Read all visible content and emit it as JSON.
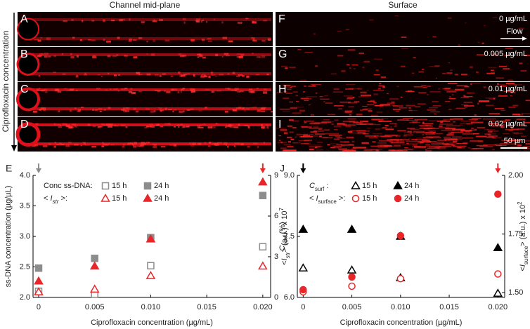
{
  "panels": {
    "left_title": "Channel mid-plane",
    "right_title": "Surface",
    "side_label": "Ciprofloxacin concentration",
    "flow": "Flow",
    "scale_bar": "50 µm",
    "left": [
      "A",
      "B",
      "C",
      "D"
    ],
    "right": [
      {
        "letter": "F",
        "conc": "0 µg/mL"
      },
      {
        "letter": "G",
        "conc": "0.005 µg/mL"
      },
      {
        "letter": "H",
        "conc": "0.01 µg/mL"
      },
      {
        "letter": "I",
        "conc": "0.02 µg/mL"
      }
    ]
  },
  "chart_data": [
    {
      "type": "scatter",
      "panel": "E",
      "xlabel": "Ciprofloxacin concentration (µg/mL)",
      "ylabel": "ss-DNA concentration (µg/µL)",
      "y2label": [
        {
          "text": "<"
        },
        {
          "text": "I",
          "italic": true
        },
        {
          "text": "str",
          "shift": "sub",
          "italic": true
        },
        {
          "text": "> (a.u.) x 10"
        },
        {
          "text": "7",
          "shift": "super"
        }
      ],
      "xlim": [
        -0.0005,
        0.0207
      ],
      "xticks": [
        0,
        0.005,
        {
          "value": 0.01,
          "label": "0.010"
        },
        0.015,
        {
          "value": 0.02,
          "label": "0.020"
        }
      ],
      "ylim": [
        2,
        4
      ],
      "yticks": [
        {
          "value": 2,
          "label": "2.0"
        },
        2.5,
        {
          "value": 3,
          "label": "3.0"
        },
        3.5,
        {
          "value": 4,
          "label": "4.0"
        }
      ],
      "y2lim": [
        0,
        9
      ],
      "y2ticks": [
        0,
        3,
        6,
        9
      ],
      "arrow_colors": [
        "#8c8c8c",
        "#e8262a"
      ],
      "legend_groups": [
        "Conc ss-DNA:",
        [
          {
            "text": "< "
          },
          {
            "text": "I",
            "italic": true
          },
          {
            "text": "str",
            "shift": "sub",
            "italic": true
          },
          {
            "text": " >:"
          }
        ]
      ],
      "x": [
        0,
        0.005,
        0.01,
        0.02
      ],
      "series": [
        {
          "name": "15 h",
          "color": "#8c8c8c",
          "marker": "square",
          "filled": false,
          "values": [
            2.1,
            2.05,
            2.52,
            2.83
          ]
        },
        {
          "name": "24 h",
          "color": "#8c8c8c",
          "marker": "square",
          "filled": true,
          "values": [
            2.48,
            2.64,
            2.98,
            3.67
          ]
        },
        {
          "name": "15 h",
          "color": "#e8262a",
          "marker": "triangle",
          "filled": false,
          "axis": "y2",
          "values": [
            0.4,
            0.6,
            1.6,
            2.3
          ]
        },
        {
          "name": "24 h",
          "color": "#e8262a",
          "marker": "triangle",
          "filled": true,
          "axis": "y2",
          "values": [
            1.2,
            2.3,
            4.3,
            8.5
          ]
        }
      ]
    },
    {
      "type": "scatter",
      "panel": "J",
      "xlabel": "Ciprofloxacin concentration (µg/mL)",
      "ylabel": [
        {
          "text": "C",
          "italic": true
        },
        {
          "text": "surf",
          "shift": "sub"
        },
        {
          "text": " (%)"
        }
      ],
      "y2label": [
        {
          "text": "<"
        },
        {
          "text": "I",
          "italic": true
        },
        {
          "text": "surface",
          "shift": "sub"
        },
        {
          "text": "> (a.u.) x 10"
        },
        {
          "text": "2",
          "shift": "super"
        }
      ],
      "xlim": [
        -0.0006,
        0.0207
      ],
      "xticks": [
        0,
        0.005,
        {
          "value": 0.01,
          "label": "0.010"
        },
        0.015,
        {
          "value": 0.02,
          "label": "0.020"
        }
      ],
      "ylim": [
        6,
        9
      ],
      "yticks": [
        {
          "value": 6,
          "label": "6.0"
        },
        7.5,
        {
          "value": 9,
          "label": "9.0"
        }
      ],
      "y2lim": [
        1.48,
        2
      ],
      "y2ticks": [
        {
          "value": 1.5,
          "label": "1.50"
        },
        1.75,
        {
          "value": 2,
          "label": "2.00"
        }
      ],
      "arrow_colors": [
        "#000000",
        "#e8262a"
      ],
      "legend_groups": [
        [
          {
            "text": "C",
            "italic": true
          },
          {
            "text": "surf",
            "shift": "sub"
          },
          {
            "text": " :"
          }
        ],
        [
          {
            "text": "< "
          },
          {
            "text": "I",
            "italic": true
          },
          {
            "text": "surface",
            "shift": "sub"
          },
          {
            "text": " >:"
          }
        ]
      ],
      "x": [
        0,
        0.005,
        0.01,
        0.02
      ],
      "series": [
        {
          "name": "15 h",
          "color": "#000000",
          "marker": "triangle",
          "filled": false,
          "values": [
            6.72,
            6.67,
            6.48,
            6.1
          ]
        },
        {
          "name": "24 h",
          "color": "#000000",
          "marker": "triangle",
          "filled": true,
          "values": [
            7.67,
            7.67,
            7.5,
            7.22
          ]
        },
        {
          "name": "15 h",
          "color": "#e8262a",
          "marker": "circle",
          "filled": false,
          "axis": "y2",
          "values": [
            1.504,
            1.528,
            1.56,
            1.58
          ]
        },
        {
          "name": "24 h",
          "color": "#e8262a",
          "marker": "circle",
          "filled": true,
          "axis": "y2",
          "values": [
            1.513,
            1.567,
            1.743,
            1.92
          ]
        }
      ]
    }
  ]
}
